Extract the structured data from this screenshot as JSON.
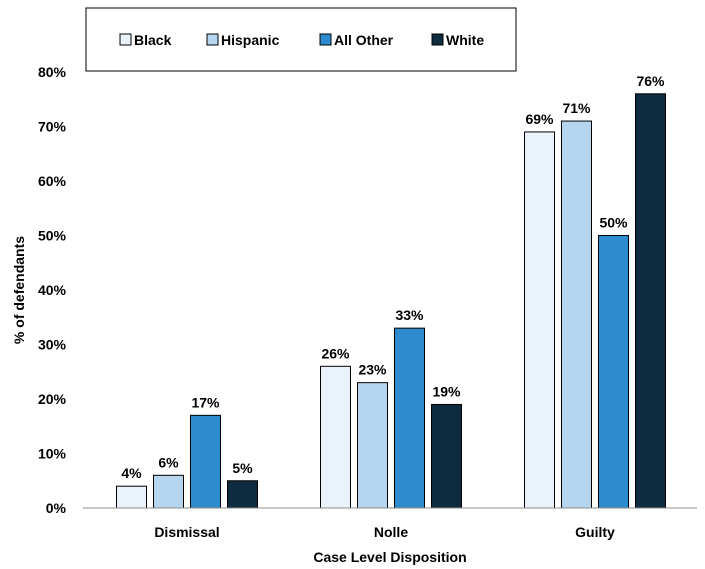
{
  "chart_data": {
    "type": "bar",
    "title": "",
    "xlabel": "Case Level Disposition",
    "ylabel": "% of defendants",
    "categories": [
      "Dismissal",
      "Nolle",
      "Guilty"
    ],
    "series": [
      {
        "name": "Black",
        "values": [
          4,
          26,
          69
        ],
        "color": "#eaf2fb",
        "label_color": "#000000"
      },
      {
        "name": "Hispanic",
        "values": [
          6,
          23,
          71
        ],
        "color": "#b5d6ee",
        "label_color": "#000000"
      },
      {
        "name": "All Other",
        "values": [
          17,
          33,
          50
        ],
        "color": "#2e8bcd",
        "label_color": "#000000"
      },
      {
        "name": "White",
        "values": [
          5,
          19,
          76
        ],
        "color": "#0f2b40",
        "label_color": "#000000"
      }
    ],
    "ylim": [
      0,
      80
    ],
    "yticks": [
      "0%",
      "10%",
      "20%",
      "30%",
      "40%",
      "50%",
      "60%",
      "70%",
      "80%"
    ],
    "value_suffix": "%",
    "grid": false,
    "legend_position": "top",
    "bar_stroke": "#000000"
  }
}
